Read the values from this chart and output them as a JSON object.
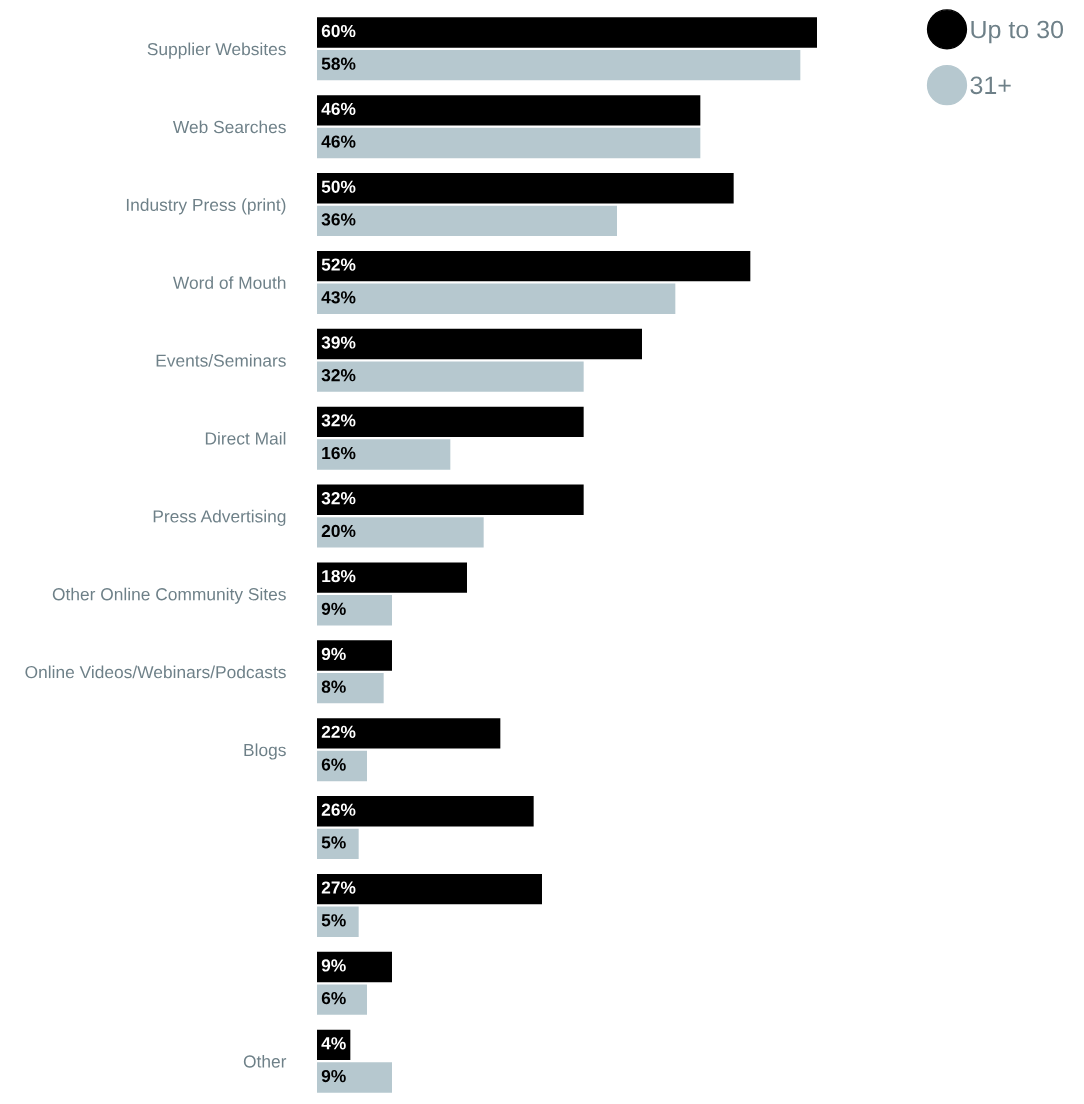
{
  "chart_data": {
    "type": "bar",
    "orientation": "horizontal",
    "categories": [
      "Supplier Websites",
      "Web Searches",
      "Industry Press (print)",
      "Word of Mouth",
      "Events/Seminars",
      "Direct Mail",
      "Press Advertising",
      "Other Online Community Sites",
      "Online Videos/Webinars/Podcasts",
      "Blogs",
      null,
      null,
      null,
      "Other"
    ],
    "series": [
      {
        "name": "Up to 30",
        "color": "#000000",
        "values": [
          60,
          46,
          50,
          52,
          39,
          32,
          32,
          18,
          9,
          22,
          26,
          27,
          9,
          4
        ],
        "value_labels": [
          "60%",
          "46%",
          "50%",
          "52%",
          "39%",
          "32%",
          "32%",
          "18%",
          "9%",
          "22%",
          "26%",
          "27%",
          "9%",
          "4%"
        ]
      },
      {
        "name": "31+",
        "color": "#b6c8cf",
        "values": [
          58,
          46,
          36,
          43,
          32,
          16,
          20,
          9,
          8,
          6,
          5,
          5,
          6,
          9
        ],
        "value_labels": [
          "58%",
          "46%",
          "36%",
          "43%",
          "32%",
          "16%",
          "20%",
          "9%",
          "8%",
          "6%",
          "5%",
          "5%",
          "6%",
          "9%"
        ]
      }
    ],
    "xlim": [
      0,
      60
    ],
    "tick_labels": "y",
    "grid": false,
    "legend": "top right"
  }
}
